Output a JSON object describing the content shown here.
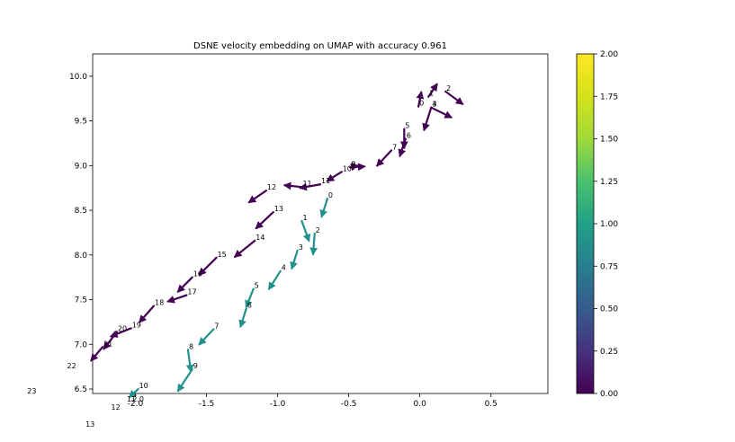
{
  "chart_data": {
    "type": "scatter",
    "title": "DSNE velocity embedding on UMAP with accuracy 0.961",
    "xlabel": "",
    "ylabel": "",
    "xlim": [
      -2.3,
      0.9
    ],
    "ylim": [
      6.45,
      10.25
    ],
    "xticks": [
      "-2.0",
      "-1.5",
      "-1.0",
      "-0.5",
      "0.0",
      "0.5"
    ],
    "xtick_values": [
      -2.0,
      -1.5,
      -1.0,
      -0.5,
      0.0,
      0.5
    ],
    "yticks": [
      "6.5",
      "7.0",
      "7.5",
      "8.0",
      "8.5",
      "9.0",
      "9.5",
      "10.0"
    ],
    "ytick_values": [
      6.5,
      7.0,
      7.5,
      8.0,
      8.5,
      9.0,
      9.5,
      10.0
    ],
    "grid": false,
    "colormap": "viridis",
    "colorbar": {
      "min": 0.0,
      "max": 2.0,
      "ticks": [
        "0.00",
        "0.25",
        "0.50",
        "0.75",
        "1.00",
        "1.25",
        "1.50",
        "1.75",
        "2.00"
      ],
      "tick_values": [
        0.0,
        0.25,
        0.5,
        0.75,
        1.0,
        1.25,
        1.5,
        1.75,
        2.0
      ]
    },
    "series": [
      {
        "color": "#440154",
        "points": [
          {
            "label": "0",
            "x": -0.01,
            "y": 9.66,
            "dx": 0.02,
            "dy": 0.16
          },
          {
            "label": "1",
            "x": 0.06,
            "y": 9.77,
            "dx": 0.06,
            "dy": 0.14
          },
          {
            "label": "2",
            "x": 0.18,
            "y": 9.83,
            "dx": 0.12,
            "dy": -0.14
          },
          {
            "label": "3",
            "x": 0.08,
            "y": 9.65,
            "dx": 0.14,
            "dy": -0.11
          },
          {
            "label": "4",
            "x": 0.08,
            "y": 9.65,
            "dx": -0.05,
            "dy": -0.25
          },
          {
            "label": "5",
            "x": -0.11,
            "y": 9.41,
            "dx": 0.0,
            "dy": -0.21
          },
          {
            "label": "6",
            "x": -0.1,
            "y": 9.3,
            "dx": -0.04,
            "dy": -0.19
          },
          {
            "label": "7",
            "x": -0.2,
            "y": 9.17,
            "dx": -0.1,
            "dy": -0.17
          },
          {
            "label": "8",
            "x": -0.49,
            "y": 8.98,
            "dx": 0.1,
            "dy": 0.01
          },
          {
            "label": "9",
            "x": -0.49,
            "y": 8.98,
            "dx": 0.05,
            "dy": 0.02
          },
          {
            "label": "10",
            "x": -0.55,
            "y": 8.93,
            "dx": -0.1,
            "dy": -0.1
          },
          {
            "label": "11",
            "x": -0.7,
            "y": 8.79,
            "dx": -0.14,
            "dy": -0.04
          },
          {
            "label": "11",
            "x": -0.83,
            "y": 8.76,
            "dx": -0.12,
            "dy": 0.02
          },
          {
            "label": "12",
            "x": -1.08,
            "y": 8.72,
            "dx": -0.12,
            "dy": -0.13
          },
          {
            "label": "13",
            "x": -1.03,
            "y": 8.48,
            "dx": -0.12,
            "dy": -0.18
          },
          {
            "label": "14",
            "x": -1.16,
            "y": 8.16,
            "dx": -0.14,
            "dy": -0.18
          },
          {
            "label": "15",
            "x": -1.43,
            "y": 7.97,
            "dx": -0.12,
            "dy": -0.19
          },
          {
            "label": "16",
            "x": -1.6,
            "y": 7.75,
            "dx": -0.1,
            "dy": -0.16
          },
          {
            "label": "17",
            "x": -1.64,
            "y": 7.55,
            "dx": -0.13,
            "dy": -0.07
          },
          {
            "label": "18",
            "x": -1.87,
            "y": 7.43,
            "dx": -0.1,
            "dy": -0.18
          },
          {
            "label": "19",
            "x": -2.03,
            "y": 7.18,
            "dx": -0.14,
            "dy": -0.09
          },
          {
            "label": "20",
            "x": -2.13,
            "y": 7.14,
            "dx": -0.09,
            "dy": -0.19
          },
          {
            "label": "21",
            "x": -2.23,
            "y": 6.97,
            "dx": -0.08,
            "dy": -0.15
          }
        ]
      },
      {
        "color": "#21918c",
        "points": [
          {
            "label": "0",
            "x": -0.65,
            "y": 8.63,
            "dx": -0.04,
            "dy": -0.2
          },
          {
            "label": "1",
            "x": -0.83,
            "y": 8.38,
            "dx": 0.05,
            "dy": -0.22
          },
          {
            "label": "2",
            "x": -0.74,
            "y": 8.24,
            "dx": -0.01,
            "dy": -0.23
          },
          {
            "label": "3",
            "x": -0.86,
            "y": 8.05,
            "dx": -0.04,
            "dy": -0.2
          },
          {
            "label": "4",
            "x": -0.98,
            "y": 7.82,
            "dx": -0.08,
            "dy": -0.2
          },
          {
            "label": "5",
            "x": -1.17,
            "y": 7.62,
            "dx": -0.05,
            "dy": -0.2
          },
          {
            "label": "6",
            "x": -1.22,
            "y": 7.4,
            "dx": -0.04,
            "dy": -0.2
          },
          {
            "label": "7",
            "x": -1.45,
            "y": 7.17,
            "dx": -0.1,
            "dy": -0.17
          },
          {
            "label": "8",
            "x": -1.63,
            "y": 6.94,
            "dx": 0.02,
            "dy": -0.24
          },
          {
            "label": "9",
            "x": -1.6,
            "y": 6.72,
            "dx": -0.1,
            "dy": -0.24
          },
          {
            "label": "10",
            "x": -1.98,
            "y": 6.5,
            "dx": -0.06,
            "dy": -0.09
          }
        ]
      }
    ],
    "outside_labels": [
      {
        "label": "22",
        "x": -2.48,
        "y": 6.73
      },
      {
        "label": "23",
        "x": -2.76,
        "y": 6.45
      },
      {
        "label": "12",
        "x": -2.17,
        "y": 6.27
      },
      {
        "label": "13",
        "x": -2.35,
        "y": 6.08
      },
      {
        "label": "11",
        "x": -2.06,
        "y": 6.36
      },
      {
        "label": "2.0",
        "x": -2.02,
        "y": 6.36
      }
    ]
  }
}
